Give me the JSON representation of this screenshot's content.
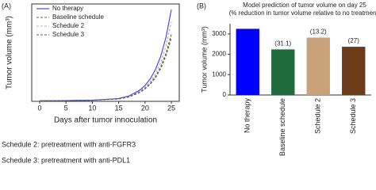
{
  "panel_labels": [
    "(A)",
    "(B)"
  ],
  "notes": [
    "Schedule 2: pretreatment with anti-FGFR3",
    "Schedule 3: pretreatment with anti-PDL1"
  ],
  "chart_data": [
    {
      "type": "line",
      "x_label": "Days after tumor innoculation",
      "y_label": "Tumor volume (mm³)",
      "x": [
        0,
        5,
        10,
        15,
        17,
        19,
        20,
        21,
        22,
        23,
        24,
        25
      ],
      "series": [
        {
          "name": "No therapy",
          "color": "#3a3af0",
          "dash": "none",
          "values": [
            20,
            25,
            40,
            100,
            195,
            395,
            560,
            800,
            1135,
            1610,
            2290,
            3250
          ]
        },
        {
          "name": "Baseline schedule",
          "color": "#2e8b3a",
          "dash": "3,2",
          "values": [
            20,
            25,
            38,
            85,
            160,
            315,
            440,
            610,
            840,
            1170,
            1620,
            2240
          ]
        },
        {
          "name": "Schedule 2",
          "color": "#d4a878",
          "dash": "3,2",
          "values": [
            20,
            25,
            39,
            92,
            178,
            355,
            500,
            700,
            980,
            1390,
            1970,
            2820
          ]
        },
        {
          "name": "Schedule 3",
          "color": "#555555",
          "dash": "3,2",
          "values": [
            20,
            25,
            38,
            88,
            165,
            325,
            455,
            635,
            880,
            1230,
            1710,
            2370
          ]
        }
      ],
      "xlim": [
        -1.5,
        26.5
      ],
      "xticks": [
        0,
        5,
        10,
        15,
        20,
        25
      ],
      "ylim": [
        0,
        3450
      ],
      "legend": "upper left"
    },
    {
      "type": "bar",
      "title": "Model prediction of tumor volume on day 25",
      "subtitle": "(% reduction in tumor volume relative to no treatment)",
      "y_label": "Tumor volume (mm³)",
      "categories": [
        "No therapy",
        "Baseline schedule",
        "Schedule 2",
        "Schedule 3"
      ],
      "values": [
        3250,
        2240,
        2820,
        2370
      ],
      "value_labels": [
        null,
        "(31.1)",
        "(13.2)",
        "(27)"
      ],
      "colors": [
        "#0000ff",
        "#1f6b3c",
        "#c9a27a",
        "#6b3a17"
      ],
      "ylim": [
        0,
        3500
      ],
      "yticks": [
        0,
        1000,
        2000,
        3000
      ]
    }
  ]
}
